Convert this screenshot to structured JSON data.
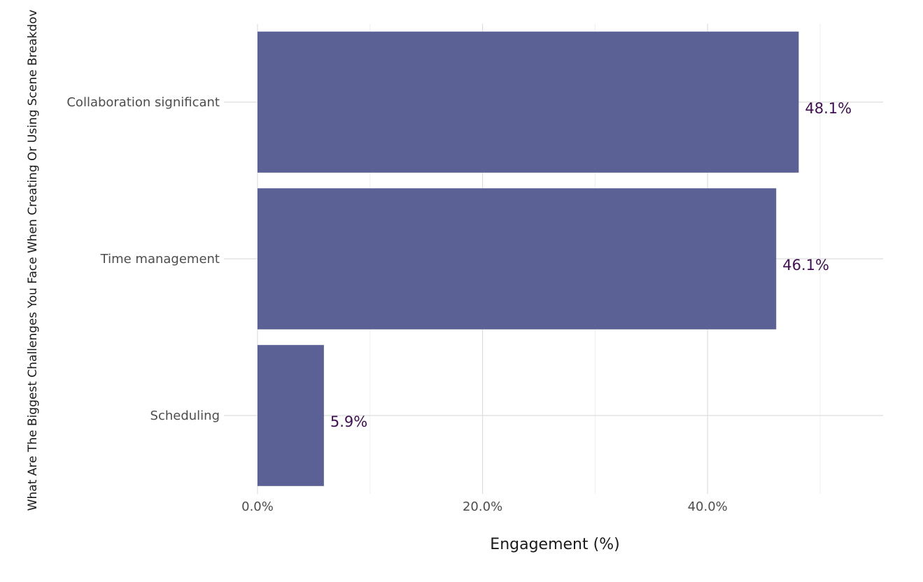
{
  "chart_data": {
    "type": "bar",
    "orientation": "horizontal",
    "categories": [
      "Collaboration significant",
      "Time management",
      "Scheduling"
    ],
    "values": [
      48.1,
      46.1,
      5.9
    ],
    "value_labels": [
      "48.1%",
      "46.1%",
      "5.9%"
    ],
    "title": "",
    "xlabel": "Engagement (%)",
    "ylabel": "What Are The Biggest Challenges You Face When Creating Or Using Scene Breakdov",
    "xlim": [
      0,
      55.6
    ],
    "xticks": [
      0,
      20,
      40
    ],
    "xtick_labels": [
      "0.0%",
      "20.0%",
      "40.0%"
    ],
    "grid": true,
    "legend": "none",
    "bar_color": "#5b6194",
    "label_color": "#3f0f4f"
  }
}
